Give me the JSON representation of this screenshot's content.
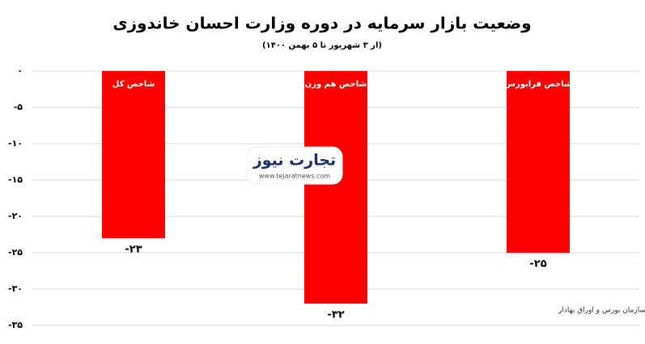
{
  "chart_data": {
    "type": "bar",
    "title": "وضعیت بازار سرمایه در دوره وزارت احسان خاندوزی",
    "subtitle": "(از ۳ شهریور تا ۵ بهمن ۱۴۰۰)",
    "categories": [
      "شاخص کل",
      "شاخص هم وزن",
      "شاخص فرابورس"
    ],
    "values": [
      -23,
      -32,
      -25
    ],
    "value_labels": [
      "-۲۳",
      "-۳۲",
      "-۲۵"
    ],
    "color": "#ff0000",
    "ylim": [
      -35,
      0
    ],
    "yticks": [
      {
        "value": 0,
        "label": "۰"
      },
      {
        "value": -5,
        "label": "-۵"
      },
      {
        "value": -10,
        "label": "-۱۰"
      },
      {
        "value": -15,
        "label": "-۱۵"
      },
      {
        "value": -20,
        "label": "-۲۰"
      },
      {
        "value": -25,
        "label": "-۲۵"
      },
      {
        "value": -30,
        "label": "-۳۰"
      },
      {
        "value": -35,
        "label": "-۳۵"
      }
    ],
    "grid": true,
    "source": "منبع: سازمان بورس و اوراق بهادار",
    "watermark": "تجارت نیوز",
    "watermark_url": "www.tejaratnews.com"
  }
}
